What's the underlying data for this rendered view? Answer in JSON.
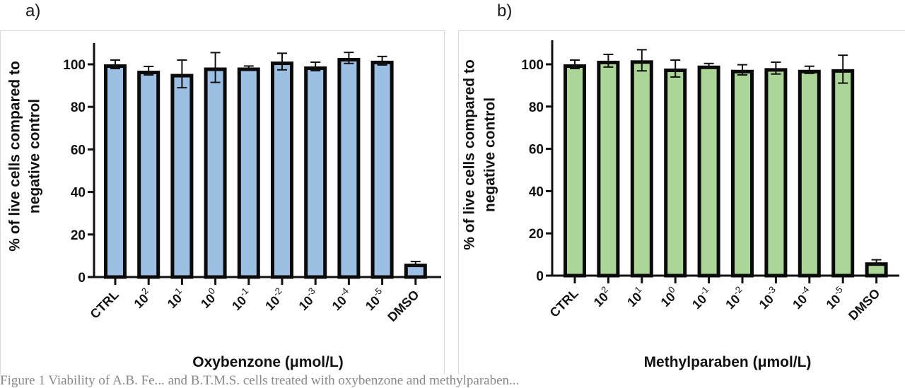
{
  "panels": [
    {
      "letter": "a)"
    },
    {
      "letter": "b)"
    }
  ],
  "caption": "Figure 1 Viability of A.B. Fe... and B.T.M.S. cells treated with oxybenzone and methylparaben...",
  "chart_data": [
    {
      "type": "bar",
      "panel": "a)",
      "title": "",
      "xlabel": "Oxybenzone (μmol/L)",
      "ylabel_lines": [
        "% of live cells compared to",
        "negative control"
      ],
      "ylabel": "% of live cells compared to negative control",
      "ylim": [
        0,
        110
      ],
      "yticks": [
        0,
        20,
        40,
        60,
        80,
        100
      ],
      "categories": [
        {
          "base": "CTRL",
          "sup": ""
        },
        {
          "base": "10",
          "sup": "2"
        },
        {
          "base": "10",
          "sup": "1"
        },
        {
          "base": "10",
          "sup": "0"
        },
        {
          "base": "10",
          "sup": "-1"
        },
        {
          "base": "10",
          "sup": "-2"
        },
        {
          "base": "10",
          "sup": "-3"
        },
        {
          "base": "10",
          "sup": "-4"
        },
        {
          "base": "10",
          "sup": "-5"
        },
        {
          "base": "DMSO",
          "sup": ""
        }
      ],
      "values": [
        100,
        97,
        95.5,
        98.5,
        98.5,
        101.3,
        99,
        103,
        101.7,
        6.3
      ],
      "errors": [
        2,
        2,
        6.5,
        7,
        0.7,
        3.9,
        2,
        2.6,
        2,
        1
      ],
      "bar_color": "#9dbfe3",
      "edge_color": "#0a0a0a",
      "grid": false,
      "legend": "none"
    },
    {
      "type": "bar",
      "panel": "b)",
      "title": "",
      "xlabel": "Methylparaben (μmol/L)",
      "ylabel_lines": [
        "% of live cells compared to",
        "negative control"
      ],
      "ylabel": "% of live cells compared to negative control",
      "ylim": [
        0,
        110
      ],
      "yticks": [
        0,
        20,
        40,
        60,
        80,
        100
      ],
      "categories": [
        {
          "base": "CTRL",
          "sup": ""
        },
        {
          "base": "10",
          "sup": "2"
        },
        {
          "base": "10",
          "sup": "1"
        },
        {
          "base": "10",
          "sup": "0"
        },
        {
          "base": "10",
          "sup": "-1"
        },
        {
          "base": "10",
          "sup": "-2"
        },
        {
          "base": "10",
          "sup": "-3"
        },
        {
          "base": "10",
          "sup": "-4"
        },
        {
          "base": "10",
          "sup": "-5"
        },
        {
          "base": "DMSO",
          "sup": ""
        }
      ],
      "values": [
        100,
        101.7,
        101.9,
        98,
        99.4,
        97.4,
        98.2,
        97.4,
        97.7,
        6.3
      ],
      "errors": [
        2,
        3,
        5,
        4,
        1,
        2.4,
        2.8,
        1.7,
        6.6,
        1.2
      ],
      "bar_color": "#acd598",
      "edge_color": "#0a0a0a",
      "grid": false,
      "legend": "none"
    }
  ]
}
